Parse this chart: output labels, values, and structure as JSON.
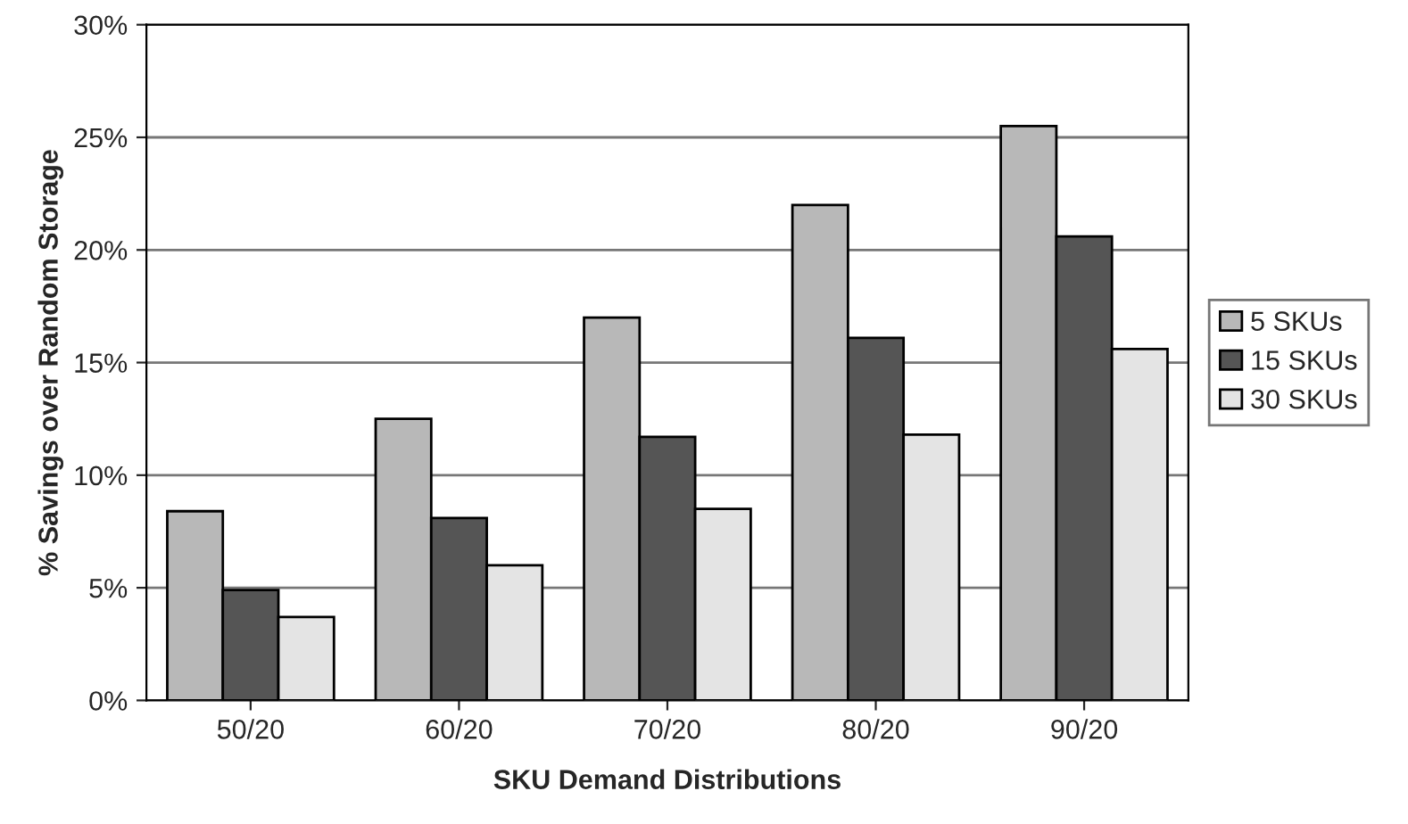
{
  "chart_data": {
    "type": "bar",
    "xlabel": "SKU Demand Distributions",
    "ylabel": "% Savings over Random Storage",
    "categories": [
      "50/20",
      "60/20",
      "70/20",
      "80/20",
      "90/20"
    ],
    "series": [
      {
        "name": "5 SKUs",
        "color": "#b8b8b8",
        "values": [
          8.4,
          12.5,
          17.0,
          22.0,
          25.5
        ]
      },
      {
        "name": "15 SKUs",
        "color": "#555555",
        "values": [
          4.9,
          8.1,
          11.7,
          16.1,
          20.6
        ]
      },
      {
        "name": "30 SKUs",
        "color": "#e4e4e4",
        "values": [
          3.7,
          6.0,
          8.5,
          11.8,
          15.6
        ]
      }
    ],
    "ylim": [
      0,
      30
    ],
    "yticks": [
      {
        "value": 0,
        "label": "0%"
      },
      {
        "value": 5,
        "label": "5%"
      },
      {
        "value": 10,
        "label": "10%"
      },
      {
        "value": 15,
        "label": "15%"
      },
      {
        "value": 20,
        "label": "20%"
      },
      {
        "value": 25,
        "label": "25%"
      },
      {
        "value": 30,
        "label": "30%"
      }
    ],
    "grid": "y",
    "legend": "right"
  }
}
